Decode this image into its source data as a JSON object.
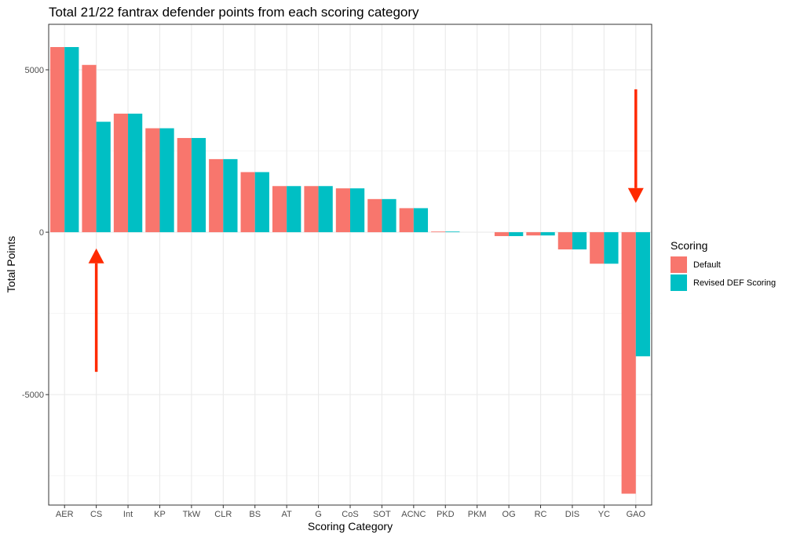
{
  "chart_data": {
    "type": "bar",
    "title": "Total 21/22 fantrax defender points from each scoring category",
    "xlabel": "Scoring Category",
    "ylabel": "Total Points",
    "categories": [
      "AER",
      "CS",
      "Int",
      "KP",
      "TkW",
      "CLR",
      "BS",
      "AT",
      "G",
      "CoS",
      "SOT",
      "ACNC",
      "PKD",
      "PKM",
      "OG",
      "RC",
      "DIS",
      "YC",
      "GAO"
    ],
    "series": [
      {
        "name": "Default",
        "color": "#F8766D",
        "values": [
          5700,
          5150,
          3650,
          3200,
          2900,
          2250,
          1850,
          1420,
          1420,
          1350,
          1020,
          740,
          20,
          0,
          -120,
          -100,
          -530,
          -970,
          -8050
        ]
      },
      {
        "name": "Revised DEF Scoring",
        "color": "#00BFC4",
        "values": [
          5700,
          3400,
          3650,
          3200,
          2900,
          2250,
          1850,
          1420,
          1420,
          1350,
          1020,
          740,
          20,
          0,
          -120,
          -100,
          -530,
          -970,
          -3820
        ]
      }
    ],
    "ylim": [
      -8400,
      6400
    ],
    "yticks": [
      -5000,
      0,
      5000
    ],
    "grid": true,
    "legend": {
      "title": "Scoring",
      "position": "right"
    },
    "annotations": [
      {
        "type": "arrow",
        "category": "CS",
        "direction": "up",
        "from_y": -4300,
        "to_y": -500,
        "color": "#FF2A00"
      },
      {
        "type": "arrow",
        "category": "GAO",
        "direction": "down",
        "from_y": 4400,
        "to_y": 900,
        "color": "#FF2A00"
      }
    ]
  }
}
